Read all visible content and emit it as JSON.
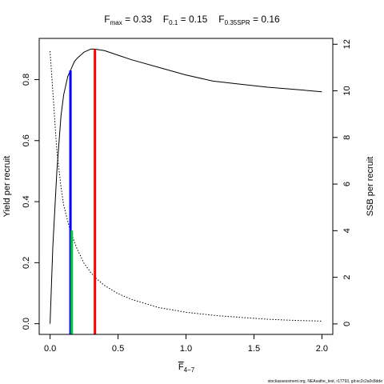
{
  "chart_data": {
    "type": "line",
    "title_parts": [
      {
        "main": "F",
        "sub": "max",
        "value": " = 0.33"
      },
      {
        "main": "F",
        "sub": "0.1",
        "value": " = 0.15"
      },
      {
        "main": "F",
        "sub": "0.35SPR",
        "value": " = 0.16"
      }
    ],
    "xlabel": {
      "main": "F",
      "sub": "4−7"
    },
    "ylabel_left": "Yield per recruit",
    "ylabel_right": "SSB per recruit",
    "xlim": [
      -0.08,
      2.08
    ],
    "ylim_left": [
      -0.035,
      0.935
    ],
    "ylim_right": [
      -0.45,
      12.25
    ],
    "x_ticks": [
      0,
      0.5,
      1,
      1.5,
      2
    ],
    "x_tick_labels": [
      "0.0",
      "0.5",
      "1.0",
      "1.5",
      "2.0"
    ],
    "y_left_ticks": [
      0,
      0.2,
      0.4,
      0.6,
      0.8
    ],
    "y_left_tick_labels": [
      "0.0",
      "0.2",
      "0.4",
      "0.6",
      "0.8"
    ],
    "y_right_ticks": [
      0,
      2,
      4,
      6,
      8,
      10,
      12
    ],
    "y_right_tick_labels": [
      "0",
      "2",
      "4",
      "6",
      "8",
      "10",
      "12"
    ],
    "series": [
      {
        "name": "",
        "axis": "left",
        "style": "solid",
        "color": "#000000",
        "x": [
          0,
          0.02,
          0.05,
          0.08,
          0.1,
          0.13,
          0.15,
          0.18,
          0.2,
          0.25,
          0.3,
          0.33,
          0.4,
          0.5,
          0.6,
          0.8,
          1.0,
          1.2,
          1.4,
          1.6,
          1.8,
          2.0
        ],
        "y": [
          0,
          0.25,
          0.5,
          0.68,
          0.75,
          0.81,
          0.83,
          0.86,
          0.87,
          0.89,
          0.9,
          0.9,
          0.895,
          0.88,
          0.865,
          0.84,
          0.815,
          0.795,
          0.785,
          0.775,
          0.768,
          0.76
        ]
      },
      {
        "name": "",
        "axis": "right",
        "style": "dotted",
        "color": "#000000",
        "x": [
          0,
          0.02,
          0.05,
          0.08,
          0.1,
          0.13,
          0.15,
          0.18,
          0.2,
          0.25,
          0.3,
          0.33,
          0.4,
          0.5,
          0.6,
          0.8,
          1.0,
          1.2,
          1.4,
          1.6,
          1.8,
          2.0
        ],
        "y": [
          11.7,
          10.0,
          7.4,
          5.9,
          5.1,
          4.4,
          4.0,
          3.5,
          3.2,
          2.6,
          2.2,
          2.0,
          1.65,
          1.3,
          1.05,
          0.7,
          0.5,
          0.37,
          0.28,
          0.2,
          0.15,
          0.12
        ]
      }
    ],
    "reference_lines": [
      {
        "x": 0.15,
        "y_left": 0.83,
        "color": "#0000ff"
      },
      {
        "x": 0.16,
        "y_left": 0.305,
        "color": "#00cc33"
      },
      {
        "x": 0.33,
        "y_left": 0.9,
        "color": "#ff0000"
      }
    ],
    "grid": false,
    "legend": "none"
  },
  "footer": "stockassessment.org, NEAsathe_test, r17793, git:ec2c2a0c8dde"
}
